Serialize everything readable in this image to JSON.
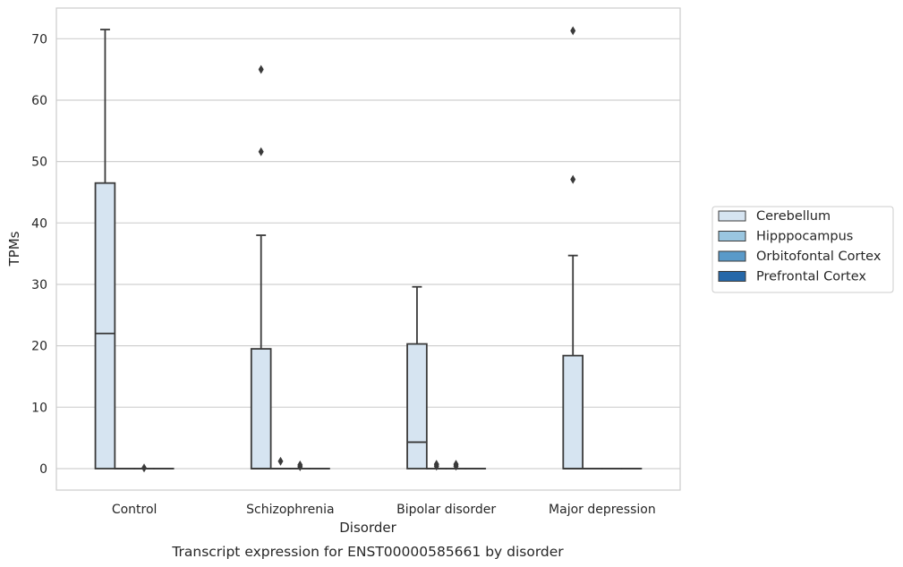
{
  "chart_data": {
    "type": "box",
    "caption": "Transcript expression for ENST00000585661 by disorder",
    "xlabel": "Disorder",
    "ylabel": "TPMs",
    "ylim": [
      -3.5,
      75
    ],
    "yticks": [
      0,
      10,
      20,
      30,
      40,
      50,
      60,
      70
    ],
    "grid": "horizontal",
    "legend_position": "right",
    "categories": [
      "Control",
      "Schizophrenia",
      "Bipolar disorder",
      "Major depression"
    ],
    "series": [
      {
        "name": "Cerebellum",
        "color": "#d6e4f1",
        "boxes": [
          {
            "min": 0,
            "q1": 0,
            "median": 22,
            "q3": 46.5,
            "max": 71.5,
            "outliers": []
          },
          {
            "min": 0,
            "q1": 0,
            "median": 0,
            "q3": 19.5,
            "max": 38,
            "outliers": [
              51.6,
              65
            ]
          },
          {
            "min": 0,
            "q1": 0,
            "median": 4.3,
            "q3": 20.3,
            "max": 29.6,
            "outliers": []
          },
          {
            "min": 0,
            "q1": 0,
            "median": 0,
            "q3": 18.4,
            "max": 34.7,
            "outliers": [
              47.1,
              71.3
            ]
          }
        ]
      },
      {
        "name": "Hipppocampus",
        "color": "#9ac6e0",
        "boxes": [
          {
            "min": 0,
            "q1": 0,
            "median": 0,
            "q3": 0,
            "max": 0,
            "outliers": []
          },
          {
            "min": 0,
            "q1": 0,
            "median": 0,
            "q3": 0,
            "max": 0,
            "outliers": [
              1.2
            ]
          },
          {
            "min": 0,
            "q1": 0,
            "median": 0,
            "q3": 0,
            "max": 0,
            "outliers": [
              0.4,
              0.7
            ]
          },
          {
            "min": 0,
            "q1": 0,
            "median": 0,
            "q3": 0,
            "max": 0,
            "outliers": []
          }
        ]
      },
      {
        "name": "Orbitofontal Cortex",
        "color": "#5a9ac9",
        "boxes": [
          {
            "min": 0,
            "q1": 0,
            "median": 0,
            "q3": 0,
            "max": 0,
            "outliers": [
              0.1
            ]
          },
          {
            "min": 0,
            "q1": 0,
            "median": 0,
            "q3": 0,
            "max": 0,
            "outliers": [
              0.3,
              0.6
            ]
          },
          {
            "min": 0,
            "q1": 0,
            "median": 0,
            "q3": 0,
            "max": 0,
            "outliers": [
              0.4,
              0.7
            ]
          },
          {
            "min": 0,
            "q1": 0,
            "median": 0,
            "q3": 0,
            "max": 0,
            "outliers": []
          }
        ]
      },
      {
        "name": "Prefrontal Cortex",
        "color": "#2668a9",
        "boxes": [
          {
            "min": 0,
            "q1": 0,
            "median": 0,
            "q3": 0,
            "max": 0,
            "outliers": []
          },
          {
            "min": 0,
            "q1": 0,
            "median": 0,
            "q3": 0,
            "max": 0,
            "outliers": []
          },
          {
            "min": 0,
            "q1": 0,
            "median": 0,
            "q3": 0,
            "max": 0,
            "outliers": []
          },
          {
            "min": 0,
            "q1": 0,
            "median": 0,
            "q3": 0,
            "max": 0,
            "outliers": []
          }
        ]
      }
    ]
  }
}
